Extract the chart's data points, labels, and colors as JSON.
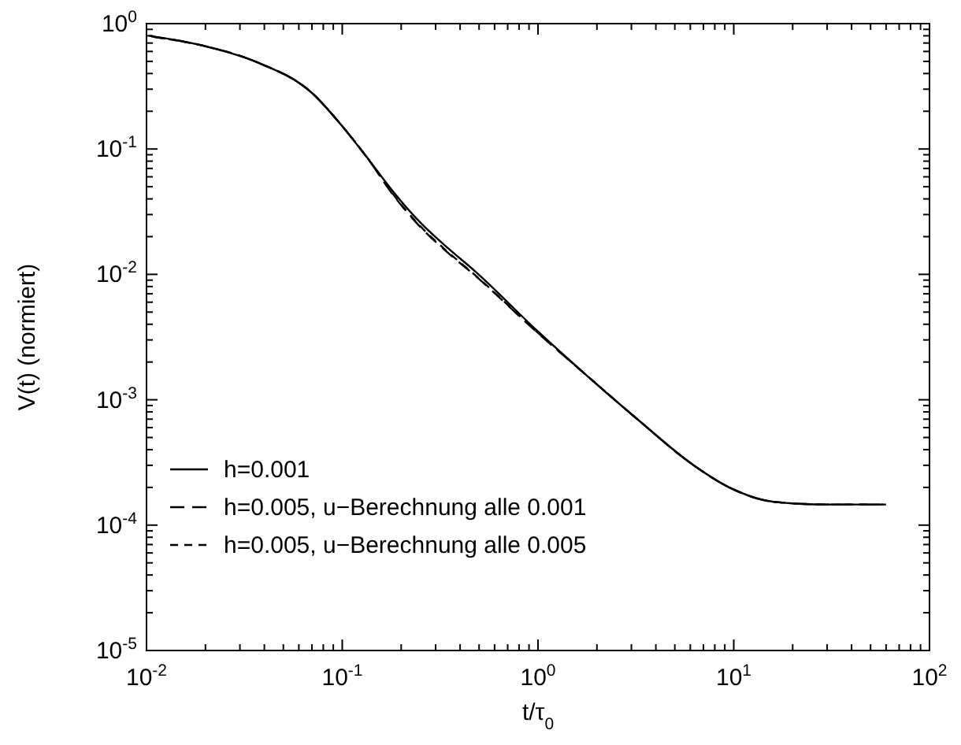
{
  "chart_data": {
    "type": "line",
    "xlabel": "t/τ$_{0}$",
    "ylabel": "V(t) (normiert)",
    "log": "xy",
    "legend": "bottom left",
    "grid": false,
    "xlim": [
      0.01,
      100
    ],
    "ylim": [
      1e-05,
      1
    ],
    "xticks": [
      {
        "value": 0.01,
        "label": "10$^{-2}$"
      },
      {
        "value": 0.1,
        "label": "10$^{-1}$"
      },
      {
        "value": 1,
        "label": "10$^{0}$"
      },
      {
        "value": 10,
        "label": "10$^{1}$"
      },
      {
        "value": 100,
        "label": "10$^{2}$"
      }
    ],
    "yticks": [
      {
        "value": 1e-05,
        "label": "10$^{-5}$"
      },
      {
        "value": 0.0001,
        "label": "10$^{-4}$"
      },
      {
        "value": 0.001,
        "label": "10$^{-3}$"
      },
      {
        "value": 0.01,
        "label": "10$^{-2}$"
      },
      {
        "value": 0.1,
        "label": "10$^{-1}$"
      },
      {
        "value": 1,
        "label": "10$^{0}$"
      }
    ],
    "x": [
      0.0103,
      0.0196,
      0.037,
      0.07,
      0.1,
      0.133,
      0.184,
      0.253,
      0.348,
      0.48,
      1,
      1.72,
      3.27,
      6.19,
      10,
      16.2,
      30.6,
      60
    ],
    "series": [
      {
        "name": "h=0.001",
        "color": "#000000",
        "line_style": "solid",
        "values": [
          0.8,
          0.665,
          0.49,
          0.28,
          0.152,
          0.0867,
          0.0447,
          0.0255,
          0.0161,
          0.0105,
          0.0035,
          0.00163,
          0.000685,
          0.000303,
          0.000192,
          0.000153,
          0.000146,
          0.000146
        ]
      },
      {
        "name": "h=0.005, u−Berechnung alle 0.001",
        "color": "#000000",
        "line_style": "dashed",
        "x": [
          0.0106,
          0.0196,
          0.037,
          0.07,
          0.1,
          0.133,
          0.184,
          0.253,
          0.348,
          0.48,
          1,
          1.72,
          3.27,
          6.19,
          10,
          16.2,
          30.6,
          58
        ],
        "values": [
          0.79,
          0.665,
          0.49,
          0.28,
          0.152,
          0.0867,
          0.042,
          0.0235,
          0.0148,
          0.0097,
          0.0034,
          0.00163,
          0.000685,
          0.000303,
          0.000192,
          0.000153,
          0.000146,
          0.000146
        ]
      },
      {
        "name": "h=0.005, u−Berechnung alle 0.005",
        "color": "#000000",
        "line_style": "dashed",
        "x": [
          0.011,
          0.0196,
          0.037,
          0.07,
          0.1,
          0.133,
          0.184,
          0.253,
          0.348,
          0.48,
          1,
          1.72,
          3.27,
          6.19,
          10,
          16.2,
          30.6,
          56
        ],
        "values": [
          0.78,
          0.665,
          0.49,
          0.28,
          0.152,
          0.0867,
          0.0425,
          0.0238,
          0.015,
          0.0098,
          0.00342,
          0.00163,
          0.000685,
          0.000303,
          0.000192,
          0.000153,
          0.000146,
          0.000146
        ]
      }
    ]
  }
}
